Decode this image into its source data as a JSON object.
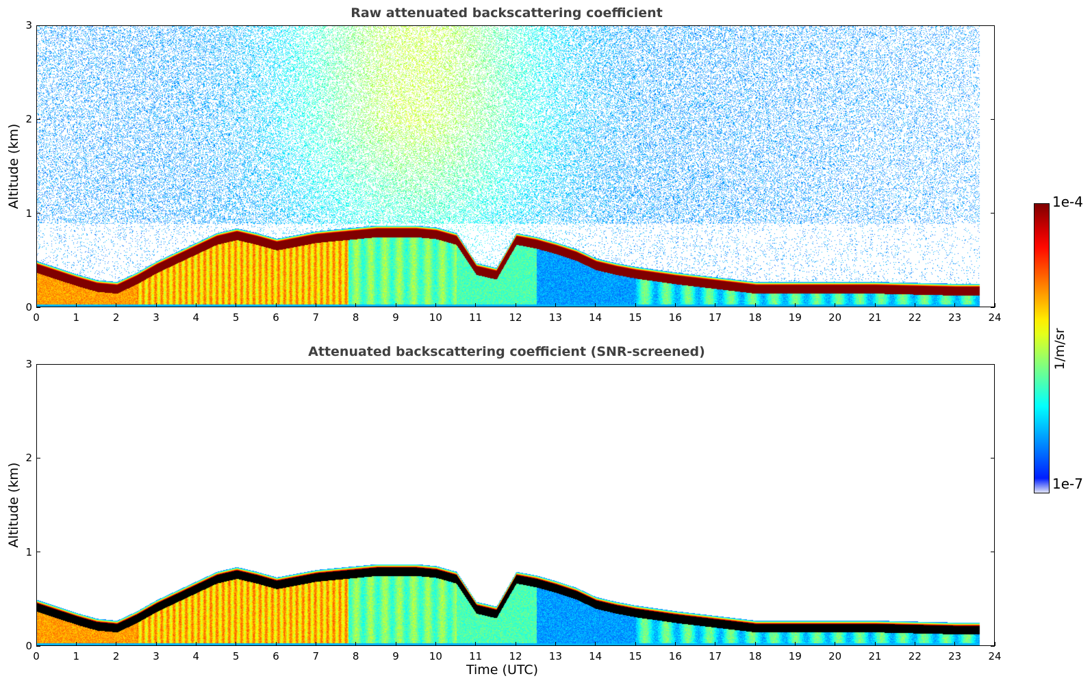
{
  "chart_data": [
    {
      "type": "heatmap",
      "id": "raw",
      "title": "Raw attenuated backscattering coefficient",
      "xlabel": "",
      "ylabel": "Altitude (km)",
      "xlim": [
        0,
        24
      ],
      "ylim": [
        0,
        3
      ],
      "xticks": [
        0,
        1,
        2,
        3,
        4,
        5,
        6,
        7,
        8,
        9,
        10,
        11,
        12,
        13,
        14,
        15,
        16,
        17,
        18,
        19,
        20,
        21,
        22,
        23,
        24
      ],
      "yticks": [
        0,
        1,
        2,
        3
      ],
      "data_end_time": 23.6,
      "boundary_layer_top_km": {
        "time": [
          0,
          0.5,
          1.0,
          1.5,
          2.0,
          2.5,
          3.0,
          3.5,
          4.0,
          4.5,
          5.0,
          5.5,
          6.0,
          6.5,
          7.0,
          7.5,
          8.0,
          8.5,
          9.0,
          9.5,
          10.0,
          10.5,
          11.0,
          11.5,
          12.0,
          12.5,
          13.0,
          13.5,
          14.0,
          14.5,
          15.0,
          16.0,
          17.0,
          18.0,
          19.0,
          20.0,
          21.0,
          22.0,
          23.0,
          23.6
        ],
        "altitude": [
          0.42,
          0.35,
          0.28,
          0.22,
          0.2,
          0.3,
          0.42,
          0.52,
          0.62,
          0.72,
          0.77,
          0.72,
          0.66,
          0.7,
          0.74,
          0.76,
          0.78,
          0.8,
          0.8,
          0.8,
          0.78,
          0.72,
          0.4,
          0.35,
          0.72,
          0.68,
          0.62,
          0.55,
          0.45,
          0.4,
          0.36,
          0.3,
          0.25,
          0.2,
          0.2,
          0.2,
          0.2,
          0.19,
          0.18,
          0.18
        ]
      },
      "noise_top_km": 3.0
    },
    {
      "type": "heatmap",
      "id": "snr",
      "title": "Attenuated backscattering coefficient (SNR-screened)",
      "xlabel": "Time (UTC)",
      "ylabel": "Altitude (km)",
      "xlim": [
        0,
        24
      ],
      "ylim": [
        0,
        3
      ],
      "xticks": [
        0,
        1,
        2,
        3,
        4,
        5,
        6,
        7,
        8,
        9,
        10,
        11,
        12,
        13,
        14,
        15,
        16,
        17,
        18,
        19,
        20,
        21,
        22,
        23,
        24
      ],
      "yticks": [
        0,
        1,
        2,
        3
      ],
      "data_end_time": 23.6,
      "screened": true
    }
  ],
  "colorbar": {
    "top_label": "1e-4",
    "bottom_label": "1e-7",
    "unit_label": "1/m/sr",
    "colormap": "jet",
    "range": [
      1e-07,
      0.0001
    ]
  }
}
